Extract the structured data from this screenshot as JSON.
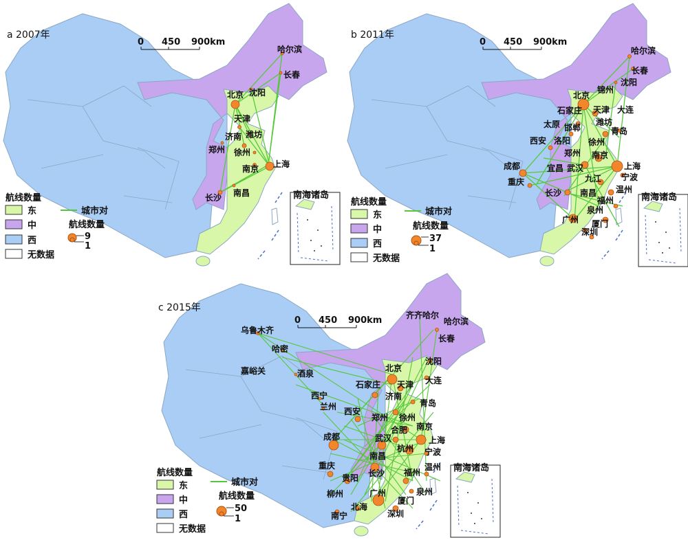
{
  "colors": {
    "east": "#d9f7a9",
    "middle": "#c7a6ee",
    "west": "#a9cdf5",
    "nodata": "#ffffff",
    "route": "#55c83a",
    "node": "#f2862a",
    "border": "#8aa6c4"
  },
  "scale": {
    "t0": "0",
    "t1": "450",
    "t2": "900km"
  },
  "legend": {
    "title": "航线数量",
    "east": "东",
    "middle": "中",
    "west": "西",
    "nodata": "无数据",
    "route_label": "城市对",
    "count_title": "航线数量",
    "inset": "南海诸岛"
  },
  "panels": [
    {
      "title": "a  2007年",
      "count_max": "9",
      "count_min": "1",
      "cities": [
        "哈尔滨",
        "长春",
        "北京",
        "沈阳",
        "天津",
        "济南",
        "潍坊",
        "郑州",
        "徐州",
        "南京",
        "上海",
        "长沙",
        "南昌"
      ]
    },
    {
      "title": "b  2011年",
      "count_max": "37",
      "count_min": "1",
      "cities": [
        "哈尔滨",
        "长春",
        "北京",
        "锦州",
        "沈阳",
        "石家庄",
        "天津",
        "大连",
        "太原",
        "邯郸",
        "潍坊",
        "青岛",
        "西安",
        "洛阳",
        "徐州",
        "郑州",
        "南京",
        "成都",
        "宜昌",
        "武汉",
        "上海",
        "重庆",
        "九江",
        "宁波",
        "长沙",
        "南昌",
        "温州",
        "福州",
        "泉州",
        "广州",
        "厦门",
        "深圳"
      ]
    },
    {
      "title": "c  2015年",
      "count_max": "50",
      "count_min": "1",
      "cities": [
        "齐齐哈尔",
        "哈尔滨",
        "乌鲁木齐",
        "长春",
        "哈密",
        "沈阳",
        "嘉峪关",
        "酒泉",
        "北京",
        "大连",
        "石家庄",
        "天津",
        "西宁",
        "济南",
        "兰州",
        "青岛",
        "西安",
        "郑州",
        "徐州",
        "南京",
        "成都",
        "合肥",
        "武汉",
        "上海",
        "杭州",
        "宁波",
        "南昌",
        "重庆",
        "温州",
        "贵阳",
        "长沙",
        "福州",
        "柳州",
        "泉州",
        "广州",
        "厦门",
        "北海",
        "深圳",
        "南宁"
      ]
    }
  ]
}
